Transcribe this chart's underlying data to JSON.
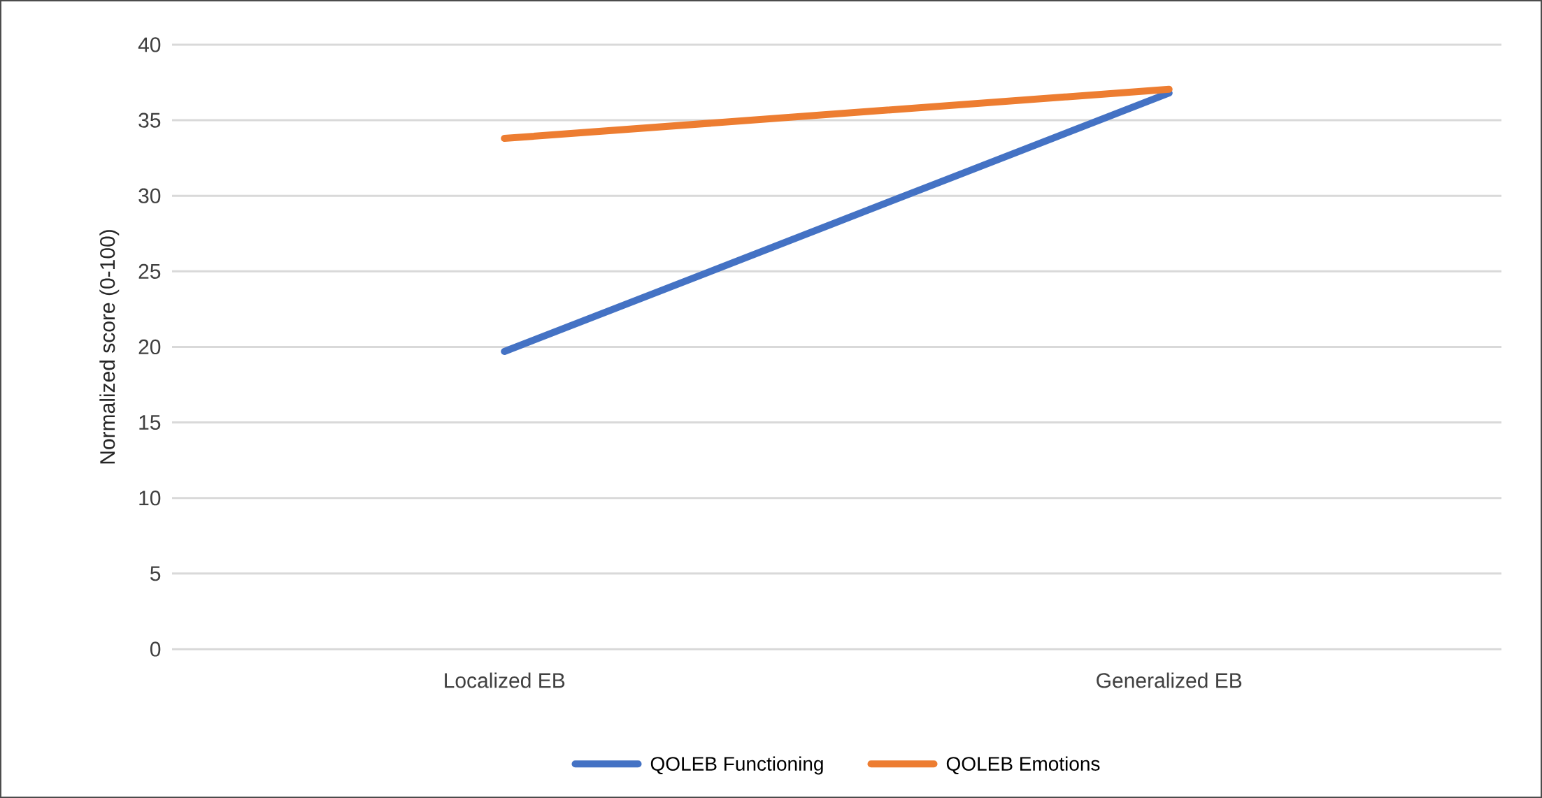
{
  "chart_data": {
    "type": "line",
    "ylabel": "Normalized score (0-100)",
    "categories": [
      "Localized EB",
      "Generalized EB"
    ],
    "series": [
      {
        "name": "QOLEB Functioning",
        "color": "#4472c4",
        "values": [
          19.7,
          36.8
        ]
      },
      {
        "name": "QOLEB Emotions",
        "color": "#ed7d31",
        "values": [
          33.8,
          37.05
        ]
      }
    ],
    "ylim": [
      0,
      40
    ],
    "yticks": [
      0,
      5,
      10,
      15,
      20,
      25,
      30,
      35,
      40
    ],
    "grid": "y",
    "legend": "bottom",
    "marker": "none",
    "line_style": "solid"
  }
}
